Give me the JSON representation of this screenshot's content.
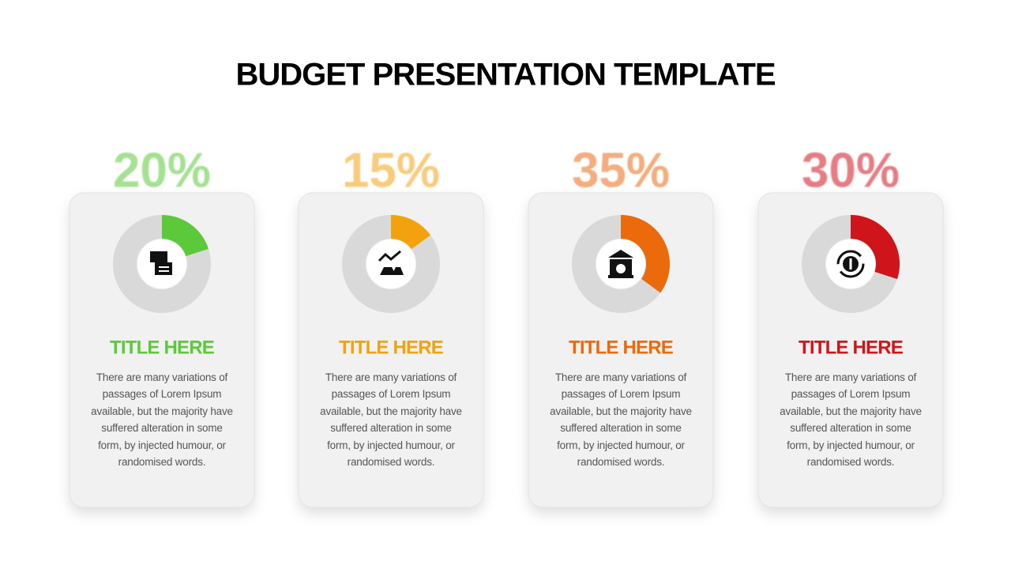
{
  "title": "BUDGET PRESENTATION TEMPLATE",
  "chart_data": [
    {
      "type": "donut",
      "values": [
        20
      ],
      "value_labels": [
        "20%"
      ],
      "color": "#5cc93a",
      "title": "TITLE HERE",
      "text": "There are many variations of passages of Lorem Ipsum available, but the majority have suffered alteration in some form, by injected humour, or randomised words."
    },
    {
      "type": "donut",
      "values": [
        15
      ],
      "value_labels": [
        "15%"
      ],
      "color": "#f2a20c",
      "title": "TITLE HERE",
      "text": "There are many variations of passages of Lorem Ipsum available, but the majority have suffered alteration in some form, by injected humour, or randomised words."
    },
    {
      "type": "donut",
      "values": [
        35
      ],
      "value_labels": [
        "35%"
      ],
      "color": "#ea6a0c",
      "title": "TITLE HERE",
      "text": "There are many variations of passages of Lorem Ipsum available, but the majority have suffered alteration in some form, by injected humour, or randomised words."
    },
    {
      "type": "donut",
      "values": [
        30
      ],
      "value_labels": [
        "30%"
      ],
      "color": "#cf141c",
      "title": "TITLE HERE",
      "text": "There are many variations of passages of Lorem Ipsum available, but the majority have suffered alteration in some form, by injected humour, or randomised words."
    }
  ]
}
